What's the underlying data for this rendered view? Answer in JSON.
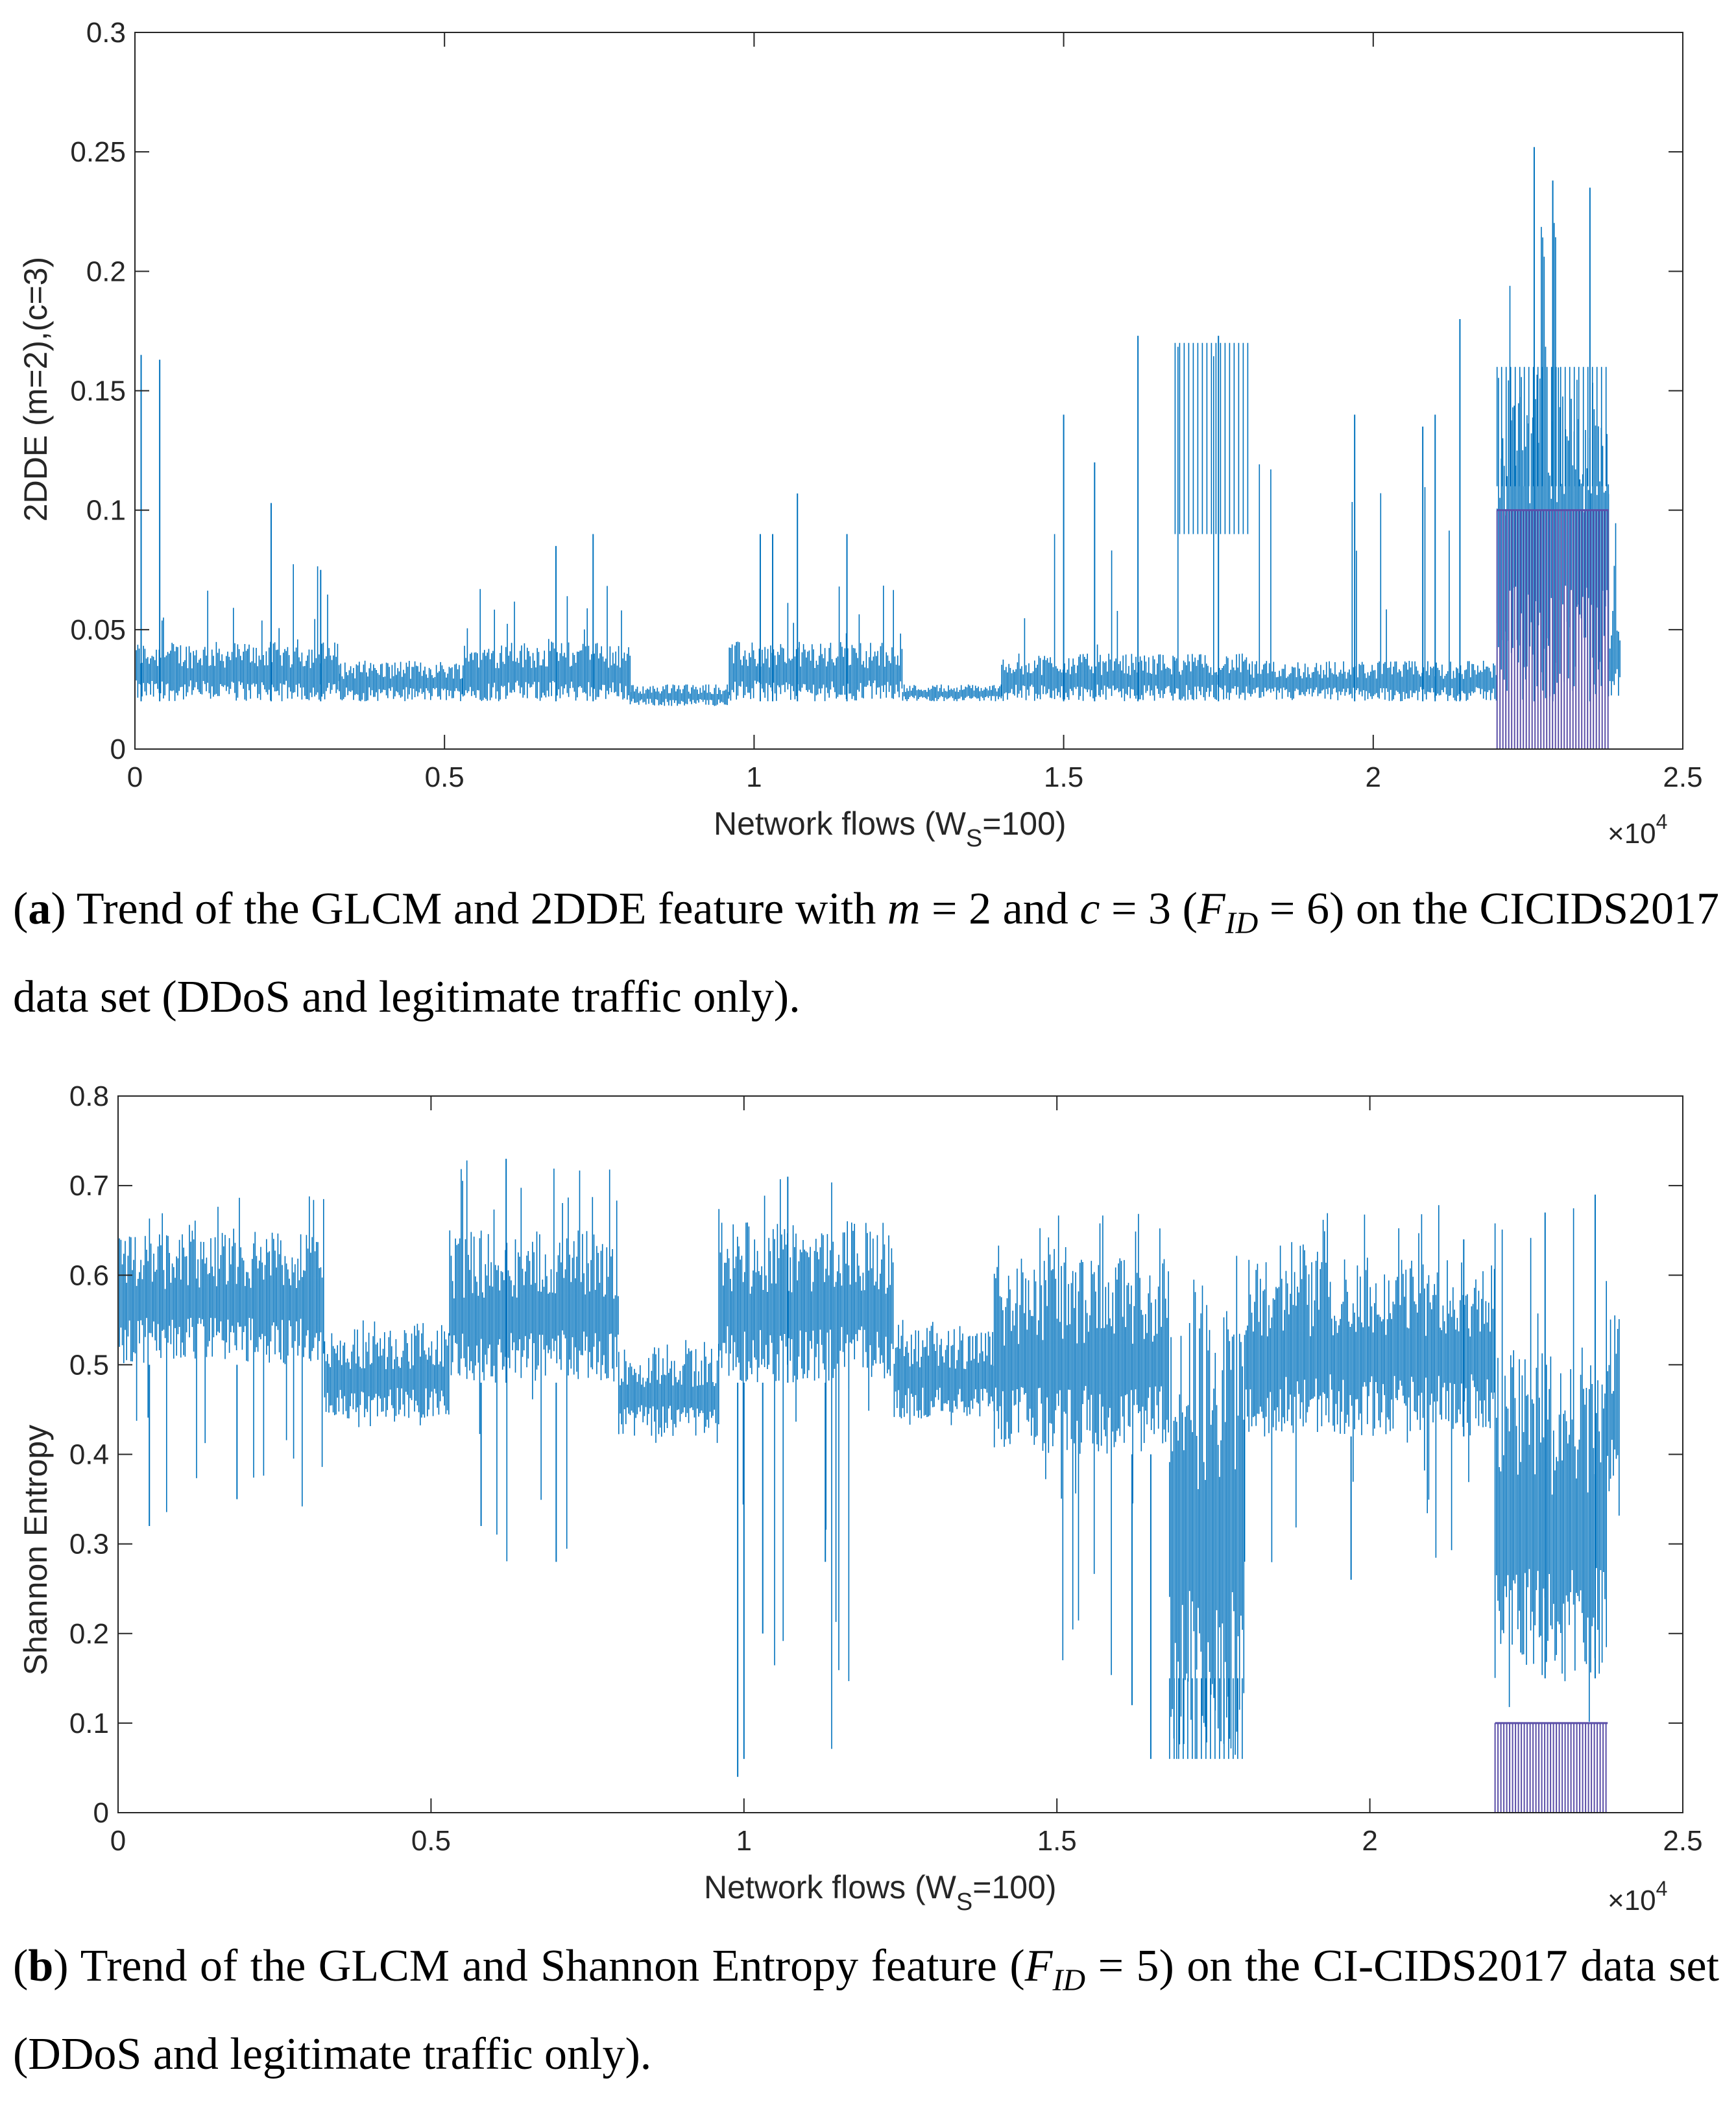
{
  "colors": {
    "series": "#0072BD",
    "attack": "#5B4FA8",
    "axis": "#262626"
  },
  "chart_data": [
    {
      "type": "line",
      "panel": "a",
      "xlabel_main": "Network flows (W",
      "xlabel_sub": "S",
      "xlabel_end": "=100)",
      "ylabel": "2DDE (m=2),(c=3)",
      "xlim": [
        0,
        2.5
      ],
      "ylim": [
        0,
        0.3
      ],
      "x_multiplier": "×10",
      "x_multiplier_exp": "4",
      "xticks": [
        "0",
        "0.5",
        "1",
        "1.5",
        "2",
        "2.5"
      ],
      "yticks": [
        "0",
        "0.05",
        "0.1",
        "0.15",
        "0.2",
        "0.25",
        "0.3"
      ],
      "segments": [
        {
          "x0": 0.0,
          "x1": 0.33,
          "base": 0.02,
          "top": 0.045,
          "max": 0.08,
          "spikes": [
            [
              0.01,
              0.165
            ],
            [
              0.04,
              0.163
            ],
            [
              0.22,
              0.103
            ],
            [
              0.3,
              0.075
            ]
          ]
        },
        {
          "x0": 0.33,
          "x1": 0.53,
          "base": 0.02,
          "top": 0.037,
          "max": 0.037,
          "spikes": []
        },
        {
          "x0": 0.53,
          "x1": 0.8,
          "base": 0.02,
          "top": 0.045,
          "max": 0.07,
          "spikes": [
            [
              0.68,
              0.085
            ],
            [
              0.74,
              0.09
            ]
          ]
        },
        {
          "x0": 0.8,
          "x1": 0.96,
          "base": 0.018,
          "top": 0.027,
          "max": 0.027,
          "spikes": []
        },
        {
          "x0": 0.96,
          "x1": 1.24,
          "base": 0.02,
          "top": 0.045,
          "max": 0.07,
          "spikes": [
            [
              1.01,
              0.09
            ],
            [
              1.03,
              0.09
            ],
            [
              1.07,
              0.107
            ],
            [
              1.15,
              0.09
            ]
          ]
        },
        {
          "x0": 1.24,
          "x1": 1.4,
          "base": 0.02,
          "top": 0.027,
          "max": 0.027,
          "spikes": []
        },
        {
          "x0": 1.4,
          "x1": 1.68,
          "base": 0.02,
          "top": 0.04,
          "max": 0.12,
          "spikes": [
            [
              1.5,
              0.14
            ],
            [
              1.62,
              0.173
            ],
            [
              1.55,
              0.12
            ]
          ]
        },
        {
          "x0": 1.68,
          "x1": 1.8,
          "base": 0.02,
          "top": 0.04,
          "max": 0.17,
          "spikes": [
            [
              1.75,
              0.173
            ]
          ],
          "band": [
            0.09,
            0.17
          ]
        },
        {
          "x0": 1.8,
          "x1": 2.2,
          "base": 0.02,
          "top": 0.037,
          "max": 0.13,
          "spikes": [
            [
              1.97,
              0.14
            ],
            [
              2.08,
              0.135
            ],
            [
              2.14,
              0.18
            ],
            [
              2.1,
              0.14
            ]
          ]
        },
        {
          "x0": 2.2,
          "x1": 2.38,
          "base": 0.02,
          "top": 0.16,
          "max": 0.23,
          "spikes": [
            [
              2.26,
              0.252
            ],
            [
              2.35,
              0.235
            ],
            [
              2.29,
              0.238
            ]
          ],
          "band": [
            0.11,
            0.16
          ]
        },
        {
          "x0": 2.38,
          "x1": 2.4,
          "base": 0.02,
          "top": 0.06,
          "max": 0.11,
          "spikes": []
        }
      ],
      "attack_region": {
        "x0": 2.2,
        "x1": 2.38,
        "bottom": 0.0,
        "top": 0.1
      }
    },
    {
      "type": "line",
      "panel": "b",
      "xlabel_main": "Network flows (W",
      "xlabel_sub": "S",
      "xlabel_end": "=100)",
      "ylabel": "Shannon Entropy",
      "xlim": [
        0,
        2.5
      ],
      "ylim": [
        0,
        0.8
      ],
      "x_multiplier": "×10",
      "x_multiplier_exp": "4",
      "xticks": [
        "0",
        "0.5",
        "1",
        "1.5",
        "2",
        "2.5"
      ],
      "yticks": [
        "0",
        "0.1",
        "0.2",
        "0.3",
        "0.4",
        "0.5",
        "0.6",
        "0.7",
        "0.8"
      ],
      "segments": [
        {
          "x0": 0.0,
          "x1": 0.33,
          "base": 0.5,
          "top": 0.65,
          "max": 0.69,
          "min": 0.32,
          "spikes": [
            [
              0.05,
              0.32
            ],
            [
              0.19,
              0.35
            ]
          ]
        },
        {
          "x0": 0.33,
          "x1": 0.53,
          "base": 0.44,
          "top": 0.54,
          "max": 0.56,
          "min": 0.43,
          "spikes": []
        },
        {
          "x0": 0.53,
          "x1": 0.8,
          "base": 0.48,
          "top": 0.65,
          "max": 0.73,
          "min": 0.28,
          "spikes": [
            [
              0.62,
              0.73
            ],
            [
              0.7,
              0.28
            ],
            [
              0.58,
              0.32
            ]
          ]
        },
        {
          "x0": 0.8,
          "x1": 0.96,
          "base": 0.42,
          "top": 0.52,
          "max": 0.53,
          "min": 0.41,
          "spikes": []
        },
        {
          "x0": 0.96,
          "x1": 1.24,
          "base": 0.48,
          "top": 0.66,
          "max": 0.72,
          "min": 0.04,
          "spikes": [
            [
              0.99,
              0.04
            ],
            [
              1.0,
              0.06
            ],
            [
              1.03,
              0.2
            ],
            [
              1.07,
              0.71
            ],
            [
              1.13,
              0.28
            ]
          ]
        },
        {
          "x0": 1.24,
          "x1": 1.4,
          "base": 0.44,
          "top": 0.54,
          "max": 0.55,
          "min": 0.43,
          "spikes": []
        },
        {
          "x0": 1.4,
          "x1": 1.68,
          "base": 0.4,
          "top": 0.62,
          "max": 0.67,
          "min": 0.12,
          "spikes": [
            [
              1.62,
              0.12
            ],
            [
              1.65,
              0.06
            ]
          ]
        },
        {
          "x0": 1.68,
          "x1": 1.8,
          "base": 0.06,
          "top": 0.6,
          "max": 0.65,
          "min": 0.06,
          "spikes": [],
          "band": [
            0.06,
            0.15
          ]
        },
        {
          "x0": 1.8,
          "x1": 2.2,
          "base": 0.42,
          "top": 0.62,
          "max": 0.68,
          "min": 0.26,
          "spikes": [
            [
              1.97,
              0.26
            ],
            [
              2.15,
              0.64
            ]
          ]
        },
        {
          "x0": 2.2,
          "x1": 2.38,
          "base": 0.15,
          "top": 0.52,
          "max": 0.68,
          "min": 0.1,
          "spikes": [
            [
              2.28,
              0.67
            ],
            [
              2.36,
              0.69
            ]
          ]
        },
        {
          "x0": 2.38,
          "x1": 2.4,
          "base": 0.33,
          "top": 0.58,
          "max": 0.62,
          "min": 0.3,
          "spikes": []
        }
      ],
      "attack_region": {
        "x0": 2.2,
        "x1": 2.38,
        "bottom": 0.0,
        "top": 0.1
      }
    }
  ],
  "captions": [
    {
      "label": "a",
      "text1": ") Trend of the GLCM and 2DDE feature with ",
      "var_m": "m",
      "text2": " = 2 and ",
      "var_c": "c",
      "text3": " = 3 (",
      "var_f": "F",
      "sub": "ID",
      "text4": " = 6) on the CICIDS2017 data set (DDoS and legitimate traffic only)."
    },
    {
      "label": "b",
      "text1": ") Trend of the GLCM and Shannon Entropy feature (",
      "var_f": "F",
      "sub": "ID",
      "text2": " = 5) on the CI-CIDS2017 data set (DDoS and legitimate traffic only)."
    }
  ]
}
